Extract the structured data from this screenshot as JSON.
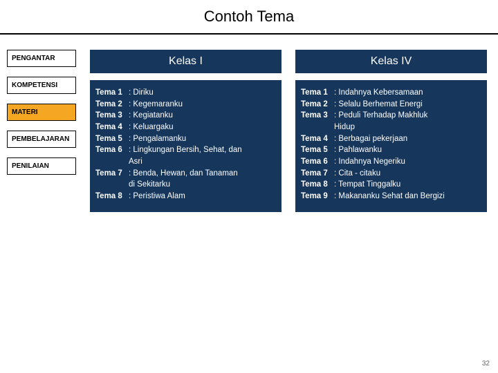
{
  "title": "Contoh Tema",
  "sidebar": {
    "items": [
      {
        "label": "PENGANTAR",
        "active": false
      },
      {
        "label": "KOMPETENSI",
        "active": false
      },
      {
        "label": "MATERI",
        "active": true
      },
      {
        "label": "PEMBELAJARAN",
        "active": false
      },
      {
        "label": "PENILAIAN",
        "active": false
      }
    ]
  },
  "columns": [
    {
      "header": "Kelas I",
      "themes": [
        {
          "no": "Tema 1",
          "desc": ": Diriku"
        },
        {
          "no": "Tema 2",
          "desc": ": Kegemaranku"
        },
        {
          "no": "Tema 3",
          "desc": ": Kegiatanku"
        },
        {
          "no": "Tema 4",
          "desc": ": Keluargaku"
        },
        {
          "no": "Tema 5",
          "desc": ": Pengalamanku"
        },
        {
          "no": "Tema 6",
          "desc": ": Lingkungan Bersih, Sehat, dan",
          "cont": "  Asri"
        },
        {
          "no": "Tema 7",
          "desc": ": Benda, Hewan, dan Tanaman",
          "cont": "  di Sekitarku"
        },
        {
          "no": "Tema 8",
          "desc": ": Peristiwa Alam"
        }
      ]
    },
    {
      "header": "Kelas IV",
      "themes": [
        {
          "no": "Tema 1",
          "desc": ": Indahnya Kebersamaan"
        },
        {
          "no": "Tema 2",
          "desc": ": Selalu Berhemat Energi"
        },
        {
          "no": "Tema 3",
          "desc": ": Peduli Terhadap Makhluk",
          "cont": "  Hidup"
        },
        {
          "no": "Tema 4",
          "desc": ": Berbagai pekerjaan"
        },
        {
          "no": "Tema 5",
          "desc": ": Pahlawanku"
        },
        {
          "no": "Tema 6",
          "desc": ": Indahnya Negeriku"
        },
        {
          "no": "Tema 7",
          "desc": ": Cita - citaku"
        },
        {
          "no": "Tema 8",
          "desc": ": Tempat Tinggalku"
        },
        {
          "no": "Tema 9",
          "desc": ": Makananku Sehat dan Bergizi"
        }
      ]
    }
  ],
  "page_number": "32",
  "colors": {
    "panel_bg": "#16365c",
    "panel_text": "#ffffff",
    "active_nav_bg": "#f5a623"
  }
}
